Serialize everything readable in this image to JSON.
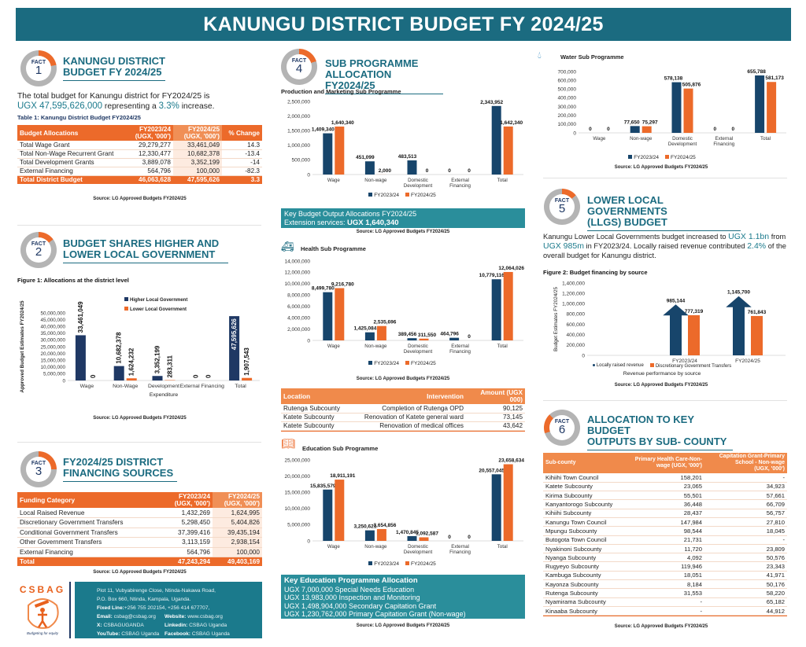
{
  "header": {
    "title": "KANUNGU DISTRICT BUDGET FY 2024/25"
  },
  "colors": {
    "teal": "#1b6b80",
    "orange": "#ec6a2a",
    "navy": "#1f3864",
    "blue": "#17456b"
  },
  "fact1": {
    "badge": "FACT",
    "num": "1",
    "title1": "KANUNGU DISTRICT",
    "title2": "BUDGET FY 2024/25",
    "text_pre": "The total budget for Kanungu district for FY2024/25 is",
    "amount": "UGX 47,595,626,000",
    "text_mid": " representing a ",
    "pct": "3.3%",
    "text_end": " increase.",
    "caption": "Table 1: Kanungu District Budget FY2024/25",
    "headers": [
      "Budget Allocations",
      "FY2023/24\n(UGX, '000')",
      "FY2024/25\n(UGX, '000')",
      "% Change"
    ],
    "rows": [
      [
        "Total Wage Grant",
        "29,279,277",
        "33,461,049",
        "14.3"
      ],
      [
        "Total Non-Wage Recurrent Grant",
        "12,330,477",
        "10,682,378",
        "-13.4"
      ],
      [
        "Total Development Grants",
        "3,889,078",
        "3,352,199",
        "-14"
      ],
      [
        "External Financing",
        "564,796",
        "100,000",
        "-82.3"
      ]
    ],
    "total": [
      "Total District Budget",
      "46,063,628",
      "47,595,626",
      "3.3"
    ],
    "source": "Source: LG Approved Budgets FY2024/25"
  },
  "fact2": {
    "badge": "FACT",
    "num": "2",
    "title1": "BUDGET SHARES HIGHER AND",
    "title2": "LOWER LOCAL GOVERNMENT",
    "caption": "Figure 1: Allocations at the district level",
    "source": "Source: LG Approved Budgets FY2024/25"
  },
  "fact3": {
    "badge": "FACT",
    "num": "3",
    "title1": "FY2024/25 DISTRICT",
    "title2": "FINANCING SOURCES",
    "headers": [
      "Funding Category",
      "FY2023/24\n(UGX, '000')",
      "FY2024/25\n(UGX, '000')"
    ],
    "rows": [
      [
        "Local Raised Revenue",
        "1,432,269",
        "1,624,995"
      ],
      [
        "Discretionary Government Transfers",
        "5,298,450",
        "5,404,826"
      ],
      [
        "Conditional Government Transfers",
        "37,399,416",
        "39,435,194"
      ],
      [
        "Other Government Transfers",
        "3,113,159",
        "2,938,154"
      ],
      [
        "External Financing",
        "564,796",
        "100,000"
      ]
    ],
    "total": [
      "Total",
      "47,243,294",
      "49,403,169"
    ],
    "source": "Source: LG Approved Budgets FY2024/25"
  },
  "footer": {
    "logo": "CSBAG",
    "tagline": "Budgeting for equity",
    "address1": "Plot 11, Vubyabirenge Close, Ntinda-Nakawa Road,",
    "address2": "P.O. Box 660, Ntinda, Kampala, Uganda.",
    "fixed_label": "Fixed Line:",
    "fixed": "+256 755 202154, +256 414 677707,",
    "email_label": "Email:",
    "email": "csbag@csbag.org",
    "website_label": "Website:",
    "website": "www.csbag.org",
    "x_label": "X:",
    "x": "CSBAGUGANDA",
    "linkedin_label": "Linkedin:",
    "linkedin": "CSBAG Uganda",
    "youtube_label": "YouTube:",
    "youtube": "CSBAG Uganda",
    "facebook_label": "Facebook:",
    "facebook": "CSBAG Uganda"
  },
  "fact4": {
    "badge": "FACT",
    "num": "4",
    "title1": "SUB PROGRAMME",
    "title2": "ALLOCATION FY2024/25",
    "prod_title": "Production and Marketing Sub Programme",
    "prod_key_title": "Key Budget Output Allocations FY2024/25",
    "prod_key_label": "Extension services: ",
    "prod_key_value": "UGX 1,640,340",
    "source": "Source: LG Approved Budgets FY2024/25",
    "health_title": "Health Sub Programme",
    "health_table": {
      "headers": [
        "Location",
        "Intervention",
        "Amount (UGX 000)"
      ],
      "rows": [
        [
          "Rutenga Subcounty",
          "Completion of Rutenga OPD",
          "90,125"
        ],
        [
          "Katete Subcounty",
          "Renovation of Katete general ward",
          "73,145"
        ],
        [
          "Katete Subcounty",
          "Renovation of medical offices",
          "43,642"
        ]
      ]
    },
    "edu_title": "Education Sub Programme",
    "edu_key_title": "Key Education Programme Allocation",
    "edu_key_items": [
      "UGX 7,000,000 Special Needs Education",
      "UGX 13,983,000 Inspection and Monitoring",
      "UGX 1,498,904,000 Secondary Capitation Grant",
      "UGX 1,230,762,000 Primary Capitation Grant (Non-wage)"
    ],
    "water_title": "Water Sub Programme"
  },
  "fact5": {
    "badge": "FACT",
    "num": "5",
    "title1": "LOWER LOCAL GOVERNMENTS",
    "title2": "(LLGS) BUDGET",
    "t1": "Kanungu Lower Local Governments budget increased to ",
    "v1": "UGX 1.1bn",
    "t2": " from ",
    "v2": "UGX 985m",
    "t3": " in FY2023/24. Locally raised revenue contributed ",
    "v3": "2.4%",
    "t4": " of the overall budget for Kanungu district.",
    "caption": "Figure 2: Budget financing by source",
    "source": "Source: LG Approved Budgets FY2024/25"
  },
  "fact6": {
    "badge": "FACT",
    "num": "6",
    "title1": "ALLOCATION TO KEY BUDGET",
    "title2": "OUTPUTS BY SUB- COUNTY",
    "headers": [
      "Sub-county",
      "Primary Health Care-Non-\nwage (UGX, '000')",
      "Capitation Grant-Primary\nSchool - Non-wage\n(UGX, '000')"
    ],
    "rows": [
      [
        "Kihiihi Town Council",
        "158,201",
        "-"
      ],
      [
        "Katete Subcounty",
        "23,065",
        "34,923"
      ],
      [
        "Kirima Subcounty",
        "55,501",
        "57,661"
      ],
      [
        "Kanyantorogo Subcounty",
        "36,448",
        "66,709"
      ],
      [
        "Kihiihi Subcounty",
        "28,437",
        "56,757"
      ],
      [
        "Kanungu Town Council",
        "147,984",
        "27,810"
      ],
      [
        "Mpungu Subcounty",
        "98,544",
        "18,045"
      ],
      [
        "Butogota Town Council",
        "21,731",
        "-"
      ],
      [
        "Nyakinoni Subcounty",
        "11,720",
        "23,809"
      ],
      [
        "Nyanga Subcounty",
        "4,092",
        "50,576"
      ],
      [
        "Rugyeyo Subcounty",
        "119,946",
        "23,343"
      ],
      [
        "Kambuga Subcounty",
        "18,051",
        "41,971"
      ],
      [
        "Kayonza Subcounty",
        "8,184",
        "50,176"
      ],
      [
        "Rutenga Subcounty",
        "31,553",
        "58,220"
      ],
      [
        "Nyamirama Subcounty",
        "-",
        "65,182"
      ],
      [
        "Kinaaba Subcounty",
        "-",
        "44,912"
      ]
    ],
    "source": "Source: LG Approved Budgets FY2024/25"
  },
  "chart_data": [
    {
      "type": "bar",
      "title": "Figure 1: Allocations at the district level",
      "xlabel": "Expenditure",
      "ylabel": "Approved Budget Estimates FY2024/25",
      "categories": [
        "Wage",
        "Non-Wage",
        "Development",
        "External Financing",
        "Total"
      ],
      "series": [
        {
          "name": "Higher Local Government",
          "color": "#1f3864",
          "values": [
            33461049,
            10682378,
            3352199,
            0,
            47595626
          ]
        },
        {
          "name": "Lower Local Government",
          "color": "#ec6a2a",
          "values": [
            0,
            1624232,
            283311,
            0,
            1907543
          ]
        }
      ],
      "ylim": [
        0,
        50000000
      ],
      "ystep": 5000000,
      "legend": "top-right"
    },
    {
      "type": "bar",
      "title": "Production and Marketing Sub Programme",
      "categories": [
        "Wage",
        "Non-wage",
        "Domestic Development",
        "External Financing",
        "Total"
      ],
      "series": [
        {
          "name": "FY2023/24",
          "color": "#17456b",
          "values": [
            1409340,
            451099,
            483513,
            0,
            2343952
          ]
        },
        {
          "name": "FY2024/25",
          "color": "#ec6a2a",
          "values": [
            1640340,
            2000,
            0,
            0,
            1642340
          ]
        }
      ],
      "ylim": [
        0,
        2500000
      ],
      "ystep": 500000,
      "legend": "bottom"
    },
    {
      "type": "bar",
      "title": "Health Sub Programme",
      "categories": [
        "Wage",
        "Non-wage",
        "Domestic Development",
        "External Financing",
        "Total"
      ],
      "series": [
        {
          "name": "FY2023/24",
          "color": "#17456b",
          "values": [
            8499780,
            1425084,
            389456,
            464796,
            10779116
          ]
        },
        {
          "name": "FY2024/25",
          "color": "#ec6a2a",
          "values": [
            9216780,
            2535696,
            311550,
            0,
            12064026
          ]
        }
      ],
      "ylim": [
        0,
        14000000
      ],
      "ystep": 2000000,
      "legend": "bottom"
    },
    {
      "type": "bar",
      "title": "Education Sub Programme",
      "categories": [
        "Wage",
        "Non-wage",
        "Domestic Development",
        "External Financing",
        "Total"
      ],
      "series": [
        {
          "name": "FY2023/24",
          "color": "#17456b",
          "values": [
            15835579,
            3250621,
            1470845,
            0,
            20557045
          ]
        },
        {
          "name": "FY2024/25",
          "color": "#ec6a2a",
          "values": [
            18911191,
            3654856,
            1092587,
            0,
            23658634
          ]
        }
      ],
      "ylim": [
        0,
        25000000
      ],
      "ystep": 5000000,
      "legend": "bottom"
    },
    {
      "type": "bar",
      "title": "Water Sub Programme",
      "categories": [
        "Wage",
        "Non-wage",
        "Domestic Development",
        "External Financing",
        "Total"
      ],
      "series": [
        {
          "name": "FY2023/24",
          "color": "#17456b",
          "values": [
            0,
            77650,
            578138,
            0,
            655788
          ]
        },
        {
          "name": "FY2024/25",
          "color": "#ec6a2a",
          "values": [
            0,
            75297,
            505876,
            0,
            581173
          ]
        }
      ],
      "ylim": [
        0,
        700000
      ],
      "ystep": 100000,
      "legend": "bottom"
    },
    {
      "type": "bar",
      "title": "Figure 2: Budget financing by source",
      "xlabel": "Revenue performance by source",
      "ylabel": "Budget Estimates FY2024/25",
      "categories": [
        "FY2023/24",
        "FY2024/25"
      ],
      "series": [
        {
          "name": "Locally raised revenue",
          "color": "#17456b",
          "values": [
            985144,
            1145700
          ]
        },
        {
          "name": "Discretionary Government Transfers",
          "color": "#ec6a2a",
          "values": [
            777319,
            761843
          ]
        }
      ],
      "ylim": [
        0,
        1400000
      ],
      "ystep": 200000,
      "legend": "bottom"
    }
  ]
}
